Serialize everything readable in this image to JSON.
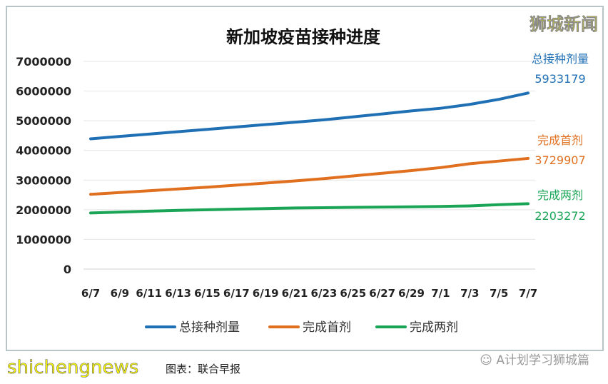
{
  "watermark_top": "狮城新闻",
  "watermark_bottom": "shichengnews",
  "caption": "图表：联合早报",
  "wechat_source": "A计划学习狮城篇",
  "chart_data": {
    "type": "line",
    "title": "新加坡疫苗接种进度",
    "categories": [
      "6/7",
      "6/9",
      "6/11",
      "6/13",
      "6/15",
      "6/17",
      "6/19",
      "6/21",
      "6/23",
      "6/25",
      "6/27",
      "6/29",
      "7/1",
      "7/3",
      "7/5",
      "7/7"
    ],
    "ylim": [
      0,
      7000000
    ],
    "yticks": [
      "0",
      "1000000",
      "2000000",
      "3000000",
      "4000000",
      "5000000",
      "6000000",
      "7000000"
    ],
    "grid": true,
    "legend_position": "bottom",
    "series": [
      {
        "name": "总接种剂量",
        "color": "#1f6fb4",
        "end_label": "5933179",
        "values": [
          4390000,
          4470000,
          4550000,
          4630000,
          4710000,
          4790000,
          4870000,
          4950000,
          5030000,
          5130000,
          5230000,
          5330000,
          5420000,
          5550000,
          5720000,
          5933179
        ]
      },
      {
        "name": "完成首剂",
        "color": "#e07020",
        "end_label": "3729907",
        "values": [
          2520000,
          2580000,
          2640000,
          2700000,
          2760000,
          2830000,
          2900000,
          2970000,
          3050000,
          3140000,
          3230000,
          3320000,
          3420000,
          3550000,
          3640000,
          3729907
        ]
      },
      {
        "name": "完成两剂",
        "color": "#1aa556",
        "end_label": "2203272",
        "values": [
          1890000,
          1920000,
          1950000,
          1980000,
          2000000,
          2020000,
          2040000,
          2060000,
          2070000,
          2080000,
          2090000,
          2100000,
          2110000,
          2130000,
          2170000,
          2203272
        ]
      }
    ]
  }
}
